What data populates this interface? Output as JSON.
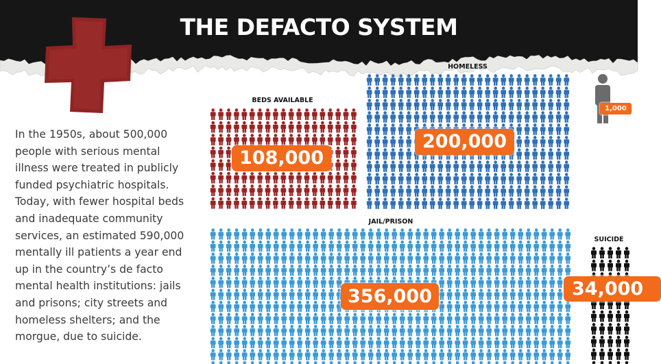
{
  "header": {
    "title": "THE DEFACTO SYSTEM"
  },
  "paragraph": {
    "lines": [
      "In the 1950s, about 500,000",
      "people with serious mental",
      "illness were treated in publicly",
      "funded psychiatric hospitals.",
      "Today, with fewer hospital beds",
      "and inadequate community",
      "services, an estimated 590,000",
      "mentally ill patients a year end",
      "up in the country’s de facto",
      "mental health institutions: jails",
      "and prisons; city streets and",
      "homeless shelters; and the",
      "morgue, due to suicide."
    ]
  },
  "groups": {
    "beds": {
      "label": "BEDS AVAILABLE",
      "count": "108,000"
    },
    "homeless": {
      "label": "HOMELESS",
      "count": "200,000"
    },
    "jail": {
      "label": "JAIL/PRISON",
      "count": "356,000"
    },
    "suicide": {
      "label": "SUICIDE",
      "count": "34,000"
    }
  },
  "legend": {
    "unit": "1,000"
  }
}
